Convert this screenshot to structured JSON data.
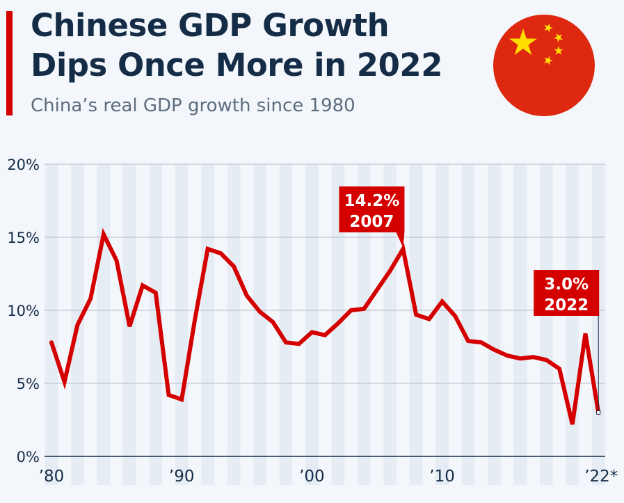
{
  "header": {
    "title_line1": "Chinese GDP Growth",
    "title_line2": "Dips Once More in 2022",
    "subtitle": "China’s real GDP growth since 1980"
  },
  "colors": {
    "line": "#d40000",
    "text": "#152c47",
    "stripe": "#e6ecf4",
    "flag_red": "#de2910",
    "flag_star": "#ffde00"
  },
  "chart_data": {
    "type": "line",
    "title": "Chinese GDP Growth Dips Once More in 2022",
    "subtitle": "China’s real GDP growth since 1980",
    "xlabel": "",
    "ylabel": "",
    "ylim": [
      0,
      20
    ],
    "xlim": [
      1980,
      2022
    ],
    "yticks": [
      {
        "v": 0,
        "label": "0%"
      },
      {
        "v": 5,
        "label": "5%"
      },
      {
        "v": 10,
        "label": "10%"
      },
      {
        "v": 15,
        "label": "15%"
      },
      {
        "v": 20,
        "label": "20%"
      }
    ],
    "xticks": [
      {
        "v": 1980,
        "label": "’80"
      },
      {
        "v": 1990,
        "label": "’90"
      },
      {
        "v": 2000,
        "label": "’00"
      },
      {
        "v": 2010,
        "label": "’10"
      },
      {
        "v": 2022,
        "label": "’22*"
      }
    ],
    "grid": true,
    "series": [
      {
        "name": "Real GDP growth",
        "x": [
          1980,
          1981,
          1982,
          1983,
          1984,
          1985,
          1986,
          1987,
          1988,
          1989,
          1990,
          1991,
          1992,
          1993,
          1994,
          1995,
          1996,
          1997,
          1998,
          1999,
          2000,
          2001,
          2002,
          2003,
          2004,
          2005,
          2006,
          2007,
          2008,
          2009,
          2010,
          2011,
          2012,
          2013,
          2014,
          2015,
          2016,
          2017,
          2018,
          2019,
          2020,
          2021,
          2022
        ],
        "values": [
          7.8,
          5.1,
          9.0,
          10.8,
          15.2,
          13.4,
          8.9,
          11.7,
          11.2,
          4.2,
          3.9,
          9.3,
          14.2,
          13.9,
          13.0,
          11.0,
          9.9,
          9.2,
          7.8,
          7.7,
          8.5,
          8.3,
          9.1,
          10.0,
          10.1,
          11.4,
          12.7,
          14.2,
          9.7,
          9.4,
          10.6,
          9.6,
          7.9,
          7.8,
          7.3,
          6.9,
          6.7,
          6.8,
          6.6,
          6.0,
          2.2,
          8.4,
          3.0
        ]
      }
    ],
    "annotations": [
      {
        "x": 2007,
        "y": 14.2,
        "line1": "14.2%",
        "line2": "2007"
      },
      {
        "x": 2022,
        "y": 3.0,
        "line1": "3.0%",
        "line2": "2022"
      }
    ]
  }
}
